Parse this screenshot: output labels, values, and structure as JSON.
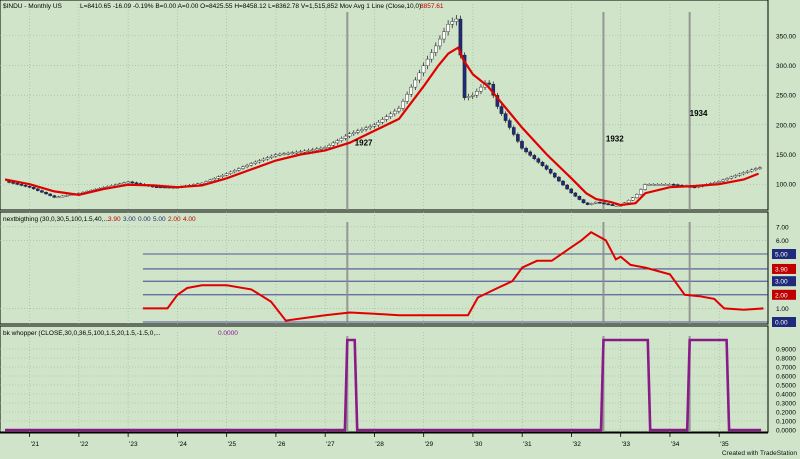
{
  "colors": {
    "background": "#cfe4c9",
    "grid": "#9ab59a",
    "price_up": "#ffffff",
    "price_down": "#1f2a7a",
    "moving_average": "#e00000",
    "indicator": "#e00000",
    "level_lines": "#2a2a8a",
    "whopper": "#8a1a8a",
    "vline": "#8a8a8a"
  },
  "header": {
    "symbol": "$INDU - Monthly  US",
    "quote": "L=8410.65  -16.09  -0.19%  B=0.00  A=0.00  O=8425.55  H=8458.12  L=8362.78  V=1,515,852  Mov Avg 1 Line (Close,10,0)",
    "last_value": "8857.61"
  },
  "indicator_header": {
    "name": "nextbigthing (30,0,30,5,100,1.5,40,...",
    "values": [
      "3.90",
      "3.00",
      "0.00",
      "5.00",
      "2.00",
      "4.00"
    ]
  },
  "whopper_header": {
    "name": "bk whopper (CLOSE,30,0,36,5,100,1.5,20,1.5,-1.5,0,...",
    "value": "0.0000"
  },
  "credit": "Created with TradeStation",
  "chart_data": [
    {
      "type": "line",
      "name": "price",
      "x_ticks": [
        "'21",
        "'22",
        "'23",
        "'24",
        "'25",
        "'26",
        "'27",
        "'28",
        "'29",
        "'30",
        "'31",
        "'32",
        "'33",
        "'34",
        "'35"
      ],
      "y_ticks": [
        "350.00",
        "300.00",
        "250.00",
        "200.00",
        "150.00",
        "100.00"
      ],
      "ylim": [
        60,
        390
      ],
      "x": [
        1920.5,
        1921,
        1921.5,
        1922,
        1922.5,
        1923,
        1923.5,
        1924,
        1924.5,
        1925,
        1925.5,
        1926,
        1926.5,
        1927,
        1927.5,
        1928,
        1928.5,
        1929,
        1929.3,
        1929.5,
        1929.7,
        1929.8,
        1930,
        1930.3,
        1930.5,
        1931,
        1931.5,
        1932,
        1932.3,
        1932.5,
        1932.8,
        1933,
        1933.3,
        1933.5,
        1934,
        1934.5,
        1935,
        1935.5,
        1935.8
      ],
      "series": [
        {
          "values": [
            105,
            95,
            78,
            85,
            95,
            104,
            96,
            95,
            102,
            118,
            135,
            150,
            155,
            162,
            185,
            200,
            228,
            300,
            340,
            370,
            380,
            245,
            250,
            275,
            230,
            160,
            125,
            85,
            65,
            70,
            65,
            65,
            80,
            100,
            100,
            95,
            105,
            120,
            128
          ]
        },
        {
          "values": [
            108,
            100,
            88,
            82,
            92,
            99,
            98,
            95,
            98,
            110,
            125,
            140,
            150,
            157,
            170,
            190,
            210,
            265,
            300,
            320,
            330,
            310,
            285,
            265,
            245,
            195,
            150,
            110,
            85,
            75,
            70,
            65,
            68,
            85,
            95,
            97,
            100,
            108,
            118
          ]
        }
      ],
      "annotations": [
        "1927",
        "1932",
        "1934"
      ]
    },
    {
      "type": "line",
      "name": "nextbigthing",
      "y_ticks": [
        "7.00",
        "6.00",
        "5.00",
        "3.90",
        "3.00",
        "2.00",
        "1.00",
        "0.00"
      ],
      "ylim": [
        0,
        7.5
      ],
      "levels": [
        5,
        3.9,
        3,
        2,
        0
      ],
      "x": [
        1923.3,
        1923.8,
        1924,
        1924.2,
        1924.5,
        1925,
        1925.5,
        1925.9,
        1926.2,
        1926.6,
        1927,
        1927.5,
        1928,
        1928.5,
        1929,
        1929.5,
        1929.9,
        1930.1,
        1930.5,
        1930.8,
        1931,
        1931.3,
        1931.6,
        1932,
        1932.2,
        1932.4,
        1932.7,
        1932.9,
        1933,
        1933.2,
        1933.5,
        1934,
        1934.3,
        1934.6,
        1934.9,
        1935.1,
        1935.5,
        1935.9
      ],
      "values": [
        1.0,
        1.0,
        2.0,
        2.5,
        2.7,
        2.7,
        2.4,
        1.5,
        0.1,
        0.3,
        0.5,
        0.7,
        0.6,
        0.5,
        0.5,
        0.5,
        0.5,
        1.8,
        2.5,
        3.0,
        4.0,
        4.5,
        4.5,
        5.5,
        6.0,
        6.6,
        6.0,
        4.6,
        4.8,
        4.2,
        4.0,
        3.5,
        2.0,
        1.9,
        1.7,
        1.0,
        0.9,
        1.0
      ]
    },
    {
      "type": "line",
      "name": "bk whopper",
      "y_ticks": [
        "0.9000",
        "0.8000",
        "0.7000",
        "0.6000",
        "0.5000",
        "0.4000",
        "0.3000",
        "0.2000",
        "0.1000",
        "0.0000"
      ],
      "ylim": [
        0,
        1
      ],
      "x": [
        1920.5,
        1927.4,
        1927.45,
        1927.6,
        1927.65,
        1932.6,
        1932.65,
        1933.55,
        1933.6,
        1934.35,
        1934.4,
        1935.15,
        1935.2,
        1935.85
      ],
      "values": [
        0,
        0,
        1,
        1,
        0,
        0,
        1,
        1,
        0,
        0,
        1,
        1,
        0,
        0
      ]
    }
  ]
}
